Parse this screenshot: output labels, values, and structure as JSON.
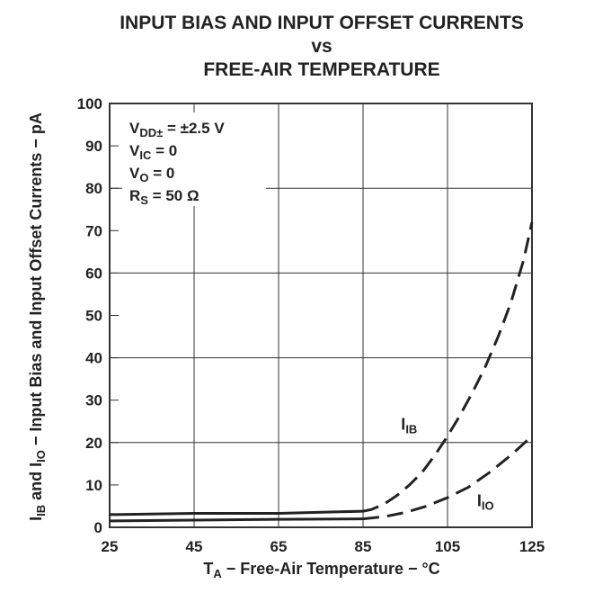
{
  "chart_data": {
    "type": "line",
    "title_lines": [
      "INPUT BIAS AND INPUT OFFSET CURRENTS",
      "vs",
      "FREE-AIR TEMPERATURE"
    ],
    "xlabel": {
      "main": "T",
      "sub": "A",
      "rest": " − Free-Air Temperature − °C"
    },
    "ylabel": {
      "p1": "I",
      "s1": "IB",
      "p2": " and I",
      "s2": "IO",
      "rest": " − Input Bias and Input Offset Currents − pA"
    },
    "xlim": [
      25,
      125
    ],
    "ylim": [
      0,
      100
    ],
    "x_ticks": [
      25,
      45,
      65,
      85,
      105,
      125
    ],
    "y_ticks": [
      0,
      10,
      20,
      30,
      40,
      50,
      60,
      70,
      80,
      90,
      100
    ],
    "grid": true,
    "conditions": [
      {
        "main": "V",
        "sub": "DD±",
        "rest": " = ±2.5 V"
      },
      {
        "main": "V",
        "sub": "IC",
        "rest": " = 0"
      },
      {
        "main": "V",
        "sub": "O",
        "rest": " = 0"
      },
      {
        "main": "R",
        "sub": "S",
        "rest": " = 50 Ω"
      }
    ],
    "series": [
      {
        "label_main": "I",
        "label_sub": "IB",
        "label_at": [
          94,
          23
        ],
        "solid": {
          "x": [
            25,
            45,
            65,
            85
          ],
          "y": [
            3.0,
            3.3,
            3.3,
            3.8
          ]
        },
        "dashed": {
          "x": [
            85,
            87,
            90,
            93,
            96,
            99,
            102,
            105,
            108,
            111,
            114,
            117,
            120,
            123,
            125
          ],
          "y": [
            3.8,
            4.2,
            5.5,
            7.5,
            10.0,
            13.0,
            17.0,
            21.5,
            26.5,
            32.0,
            38.0,
            45.0,
            53.0,
            63.0,
            72.0
          ]
        }
      },
      {
        "label_main": "I",
        "label_sub": "IO",
        "label_at": [
          112,
          5
        ],
        "solid": {
          "x": [
            25,
            45,
            65,
            85
          ],
          "y": [
            1.5,
            1.7,
            1.9,
            2.0
          ]
        },
        "dashed": {
          "x": [
            85,
            90,
            95,
            100,
            105,
            110,
            115,
            120,
            125
          ],
          "y": [
            2.0,
            2.5,
            3.5,
            5.0,
            7.0,
            9.5,
            13.0,
            17.0,
            21.5
          ]
        }
      }
    ]
  }
}
